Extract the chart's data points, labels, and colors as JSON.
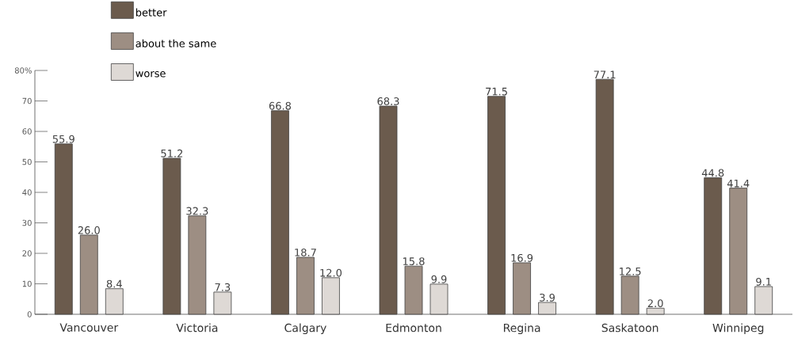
{
  "chart_data": {
    "type": "bar",
    "categories": [
      "Vancouver",
      "Victoria",
      "Calgary",
      "Edmonton",
      "Regina",
      "Saskatoon",
      "Winnipeg"
    ],
    "series": [
      {
        "name": "better",
        "color": "#6b5b4d",
        "values": [
          55.9,
          51.2,
          66.8,
          68.3,
          71.5,
          77.1,
          44.8
        ],
        "value_labels": [
          "55.9",
          "51.2",
          "66.8",
          "68.3",
          "71.5",
          "77.1",
          "44.8"
        ]
      },
      {
        "name": "about the same",
        "color": "#9d8e83",
        "values": [
          26.0,
          32.3,
          18.7,
          15.8,
          16.9,
          12.5,
          41.4
        ],
        "value_labels": [
          "26.0",
          "32.3",
          "18.7",
          "15.8",
          "16.9",
          "12.5",
          "41.4"
        ]
      },
      {
        "name": "worse",
        "color": "#ded9d5",
        "values": [
          8.4,
          7.3,
          12.0,
          9.9,
          3.9,
          2.0,
          9.1
        ],
        "value_labels": [
          "8.4",
          "7.3",
          "12.0",
          "9.9",
          "3.9",
          "2.0",
          "9.1"
        ]
      }
    ],
    "ylim": [
      0,
      80
    ],
    "yticks": [
      0,
      10,
      20,
      30,
      40,
      50,
      60,
      70,
      {
        "value": 80,
        "label": "80%"
      }
    ],
    "legend": "top left"
  }
}
